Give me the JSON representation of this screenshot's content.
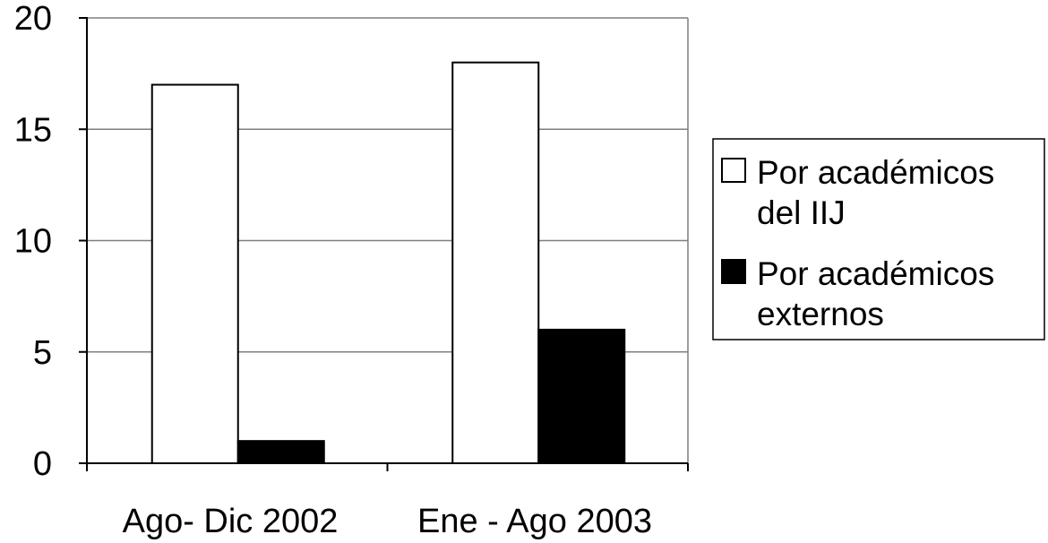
{
  "chart_data": {
    "type": "bar",
    "categories": [
      "Ago- Dic 2002",
      "Ene - Ago 2003"
    ],
    "series": [
      {
        "name": "Por académicos del IIJ",
        "name_lines": [
          "Por académicos",
          "del IIJ"
        ],
        "values": [
          17,
          18
        ],
        "color": "#ffffff"
      },
      {
        "name": "Por académicos externos",
        "name_lines": [
          "Por académicos",
          "externos"
        ],
        "values": [
          1,
          6
        ],
        "color": "#000000"
      }
    ],
    "title": "",
    "xlabel": "",
    "ylabel": "",
    "ylim": [
      0,
      20
    ],
    "yticks": [
      0,
      5,
      10,
      15,
      20
    ],
    "grid": true,
    "legend_position": "right"
  }
}
